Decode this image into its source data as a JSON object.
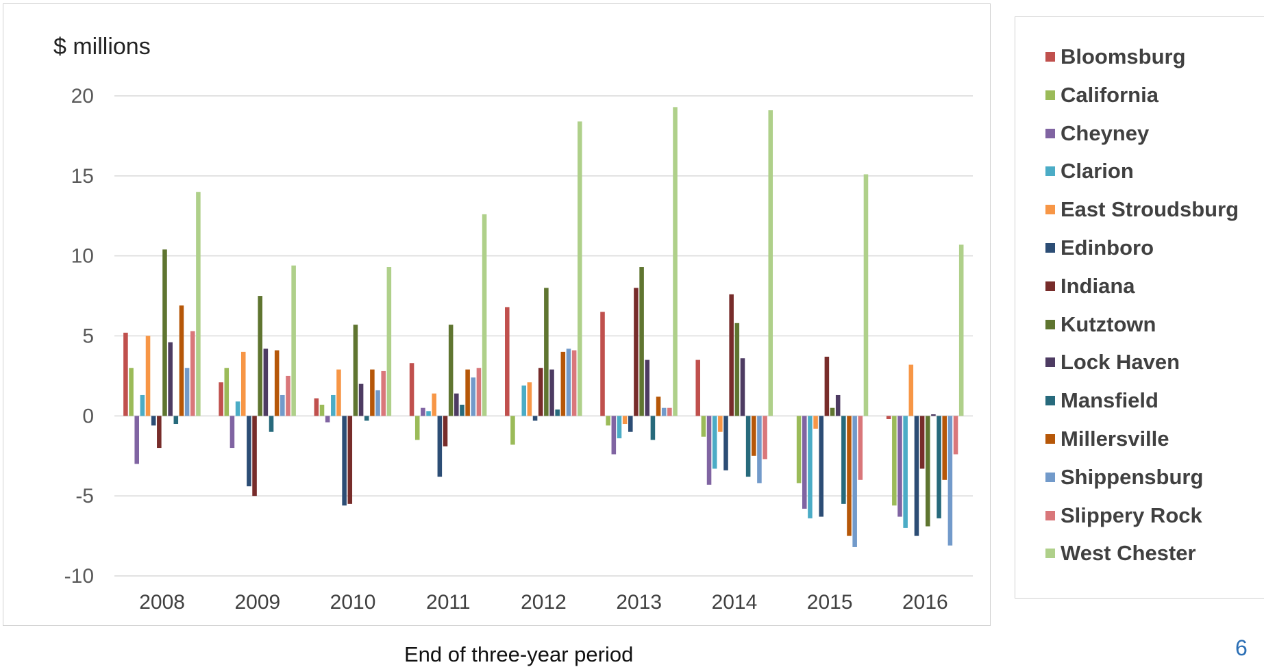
{
  "slide_number": "6",
  "chart_data": {
    "type": "bar",
    "title": "",
    "ylabel": "$ millions",
    "xlabel": "End of three-year period",
    "ylim": [
      -10,
      20
    ],
    "yticks": [
      -10,
      -5,
      0,
      5,
      10,
      15,
      20
    ],
    "grid": true,
    "legend": "right",
    "categories": [
      "2008",
      "2009",
      "2010",
      "2011",
      "2012",
      "2013",
      "2014",
      "2015",
      "2016"
    ],
    "series": [
      {
        "name": "Bloomsburg",
        "color": "#c0504d",
        "values": [
          5.2,
          2.1,
          1.1,
          3.3,
          6.8,
          6.5,
          3.5,
          0,
          -0.2
        ]
      },
      {
        "name": "California",
        "color": "#9bbb59",
        "values": [
          3.0,
          3.0,
          0.7,
          -1.5,
          -1.8,
          -0.6,
          -1.3,
          -4.2,
          -5.6
        ]
      },
      {
        "name": "Cheyney",
        "color": "#8064a2",
        "values": [
          -3.0,
          -2.0,
          -0.4,
          0.5,
          0,
          -2.4,
          -4.3,
          -5.8,
          -6.3
        ]
      },
      {
        "name": "Clarion",
        "color": "#4bacc6",
        "values": [
          1.3,
          0.9,
          1.3,
          0.3,
          1.9,
          -1.4,
          -3.3,
          -6.4,
          -7.0
        ]
      },
      {
        "name": "East Stroudsburg",
        "color": "#f79646",
        "values": [
          5.0,
          4.0,
          2.9,
          1.4,
          2.1,
          -0.5,
          -1.0,
          -0.8,
          3.2
        ]
      },
      {
        "name": "Edinboro",
        "color": "#2c4d75",
        "values": [
          -0.6,
          -4.4,
          -5.6,
          -3.8,
          -0.3,
          -1.0,
          -3.4,
          -6.3,
          -7.5
        ]
      },
      {
        "name": "Indiana",
        "color": "#772c2a",
        "values": [
          -2.0,
          -5.0,
          -5.5,
          -1.9,
          3.0,
          8.0,
          7.6,
          3.7,
          -3.3
        ]
      },
      {
        "name": "Kutztown",
        "color": "#5f7530",
        "values": [
          10.4,
          7.5,
          5.7,
          5.7,
          8.0,
          9.3,
          5.8,
          0.5,
          -6.9
        ]
      },
      {
        "name": "Lock Haven",
        "color": "#4d3b62",
        "values": [
          4.6,
          4.2,
          2.0,
          1.4,
          2.9,
          3.5,
          3.6,
          1.3,
          0.1
        ]
      },
      {
        "name": "Mansfield",
        "color": "#276a7c",
        "values": [
          -0.5,
          -1.0,
          -0.3,
          0.7,
          0.4,
          -1.5,
          -3.8,
          -5.5,
          -6.4
        ]
      },
      {
        "name": "Millersville",
        "color": "#b65708",
        "values": [
          6.9,
          4.1,
          2.9,
          2.9,
          4.0,
          1.2,
          -2.5,
          -7.5,
          -4.0
        ]
      },
      {
        "name": "Shippensburg",
        "color": "#729aca",
        "values": [
          3.0,
          1.3,
          1.6,
          2.4,
          4.2,
          0.5,
          -4.2,
          -8.2,
          -8.1
        ]
      },
      {
        "name": "Slippery Rock",
        "color": "#d9777a",
        "values": [
          5.3,
          2.5,
          2.8,
          3.0,
          4.1,
          0.5,
          -2.7,
          -4.0,
          -2.4
        ]
      },
      {
        "name": "West Chester",
        "color": "#afd08a",
        "values": [
          14.0,
          9.4,
          9.3,
          12.6,
          18.4,
          19.3,
          19.1,
          15.1,
          10.7
        ]
      }
    ]
  }
}
